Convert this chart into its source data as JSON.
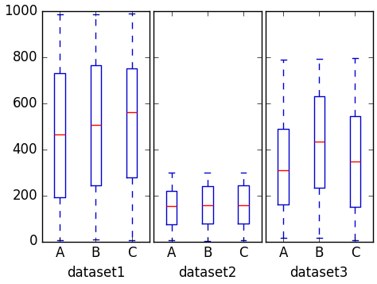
{
  "seed": 42,
  "datasets": [
    "dataset1",
    "dataset2",
    "dataset3"
  ],
  "groups": [
    "A",
    "B",
    "C"
  ],
  "dataset_ranges": {
    "dataset1": [
      0,
      1000
    ],
    "dataset2": [
      0,
      300
    ],
    "dataset3": [
      0,
      800
    ]
  },
  "n_samples": 100,
  "box_color": "#0000cd",
  "median_color": "#ff0000",
  "ylim": [
    0,
    1000
  ],
  "yticks": [
    0,
    200,
    400,
    600,
    800,
    1000
  ],
  "figsize": [
    4.74,
    3.57
  ],
  "dpi": 100,
  "background_color": "#e6e6e6",
  "axes_bg_color": "#ffffff"
}
